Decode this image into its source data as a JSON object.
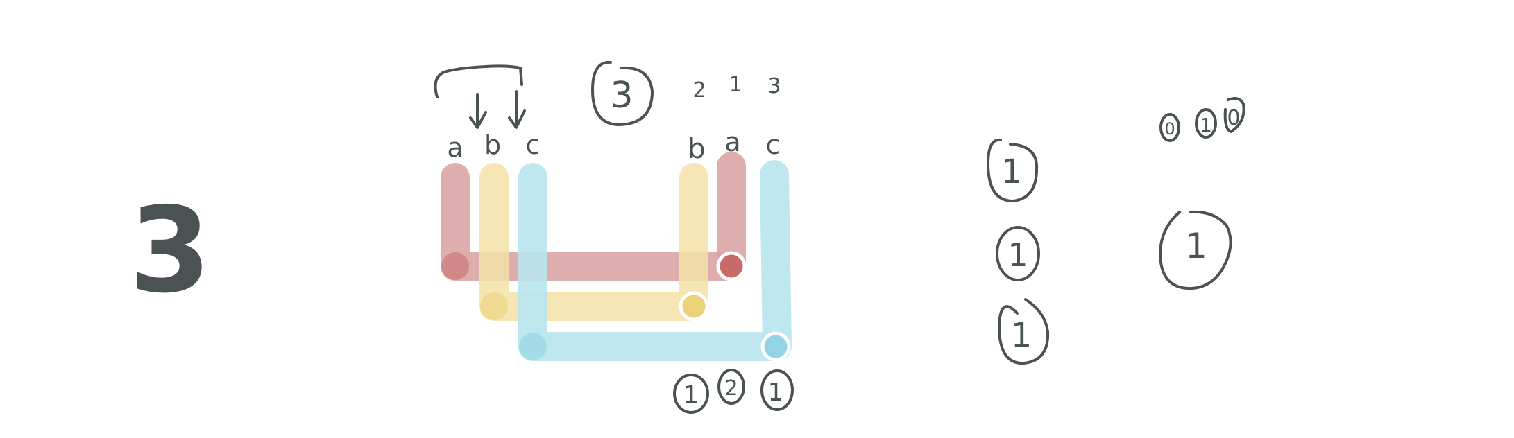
{
  "big_digit": "3",
  "colors": {
    "ink": "#4a5254",
    "a": "#d9a0a0",
    "a_dot": "#c86a6a",
    "b": "#f4e2a8",
    "b_dot": "#ecd27a",
    "c": "#b8e4ee",
    "c_dot": "#92d4e4"
  },
  "left_wires": {
    "labels": [
      "a",
      "b",
      "c"
    ]
  },
  "right_wires": {
    "labels": [
      "b",
      "a",
      "c"
    ],
    "indices": [
      "2",
      "1",
      "3"
    ]
  },
  "cycle_number": "3",
  "bottom_marks": [
    "1",
    "2",
    "1"
  ],
  "mid_column": [
    "1",
    "1",
    "1"
  ],
  "right_top_marks": [
    "0",
    "1",
    "0"
  ],
  "right_big_mark": "1"
}
